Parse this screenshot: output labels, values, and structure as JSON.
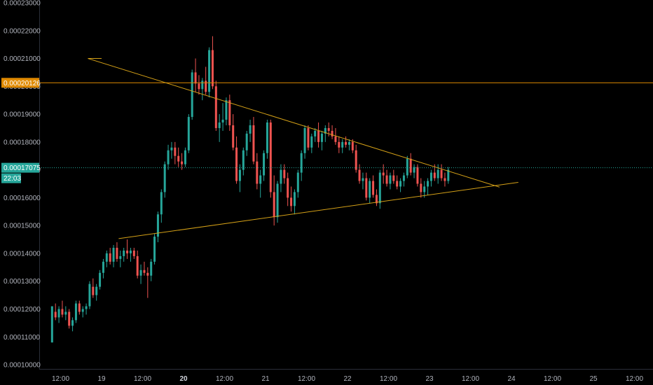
{
  "chart_data": {
    "type": "candlestick",
    "title": "",
    "xlabel": "",
    "ylabel": "",
    "ylim": [
      9.85e-05,
      0.000231
    ],
    "grid": false,
    "y_ticks": [
      "0.00010000",
      "0.00011000",
      "0.00012000",
      "0.00013000",
      "0.00014000",
      "0.00015000",
      "0.00016000",
      "0.00017000",
      "0.00018000",
      "0.00019000",
      "0.00020000",
      "0.00021000",
      "0.00022000",
      "0.00023000"
    ],
    "x_ticks": [
      {
        "label": "12:00",
        "bold": false
      },
      {
        "label": "19",
        "bold": false
      },
      {
        "label": "12:00",
        "bold": false
      },
      {
        "label": "20",
        "bold": true
      },
      {
        "label": "12:00",
        "bold": false
      },
      {
        "label": "21",
        "bold": false
      },
      {
        "label": "12:00",
        "bold": false
      },
      {
        "label": "22",
        "bold": false
      },
      {
        "label": "12:00",
        "bold": false
      },
      {
        "label": "23",
        "bold": false
      },
      {
        "label": "12:00",
        "bold": false
      },
      {
        "label": "24",
        "bold": false
      },
      {
        "label": "12:00",
        "bold": false
      },
      {
        "label": "25",
        "bold": false
      },
      {
        "label": "12:00",
        "bold": false
      }
    ],
    "time_axis_note": "x values are hours from 18 00:00; candles are 1h",
    "candles": [
      [
        0.000108,
        0.000121,
        0.000108,
        0.000121
      ],
      [
        0.000119,
        0.000122,
        0.000116,
        0.000117
      ],
      [
        0.000117,
        0.000121,
        0.000115,
        0.00012
      ],
      [
        0.00012,
        0.000123,
        0.000117,
        0.000118
      ],
      [
        0.000118,
        0.000121,
        0.000116,
        0.000119
      ],
      [
        0.000119,
        0.00012,
        0.000113,
        0.000114
      ],
      [
        0.000114,
        0.000117,
        0.000112,
        0.000116
      ],
      [
        0.000116,
        0.000123,
        0.000115,
        0.000122
      ],
      [
        0.000122,
        0.000123,
        0.000118,
        0.000119
      ],
      [
        0.000119,
        0.000121,
        0.000117,
        0.00012
      ],
      [
        0.00012,
        0.000122,
        0.000118,
        0.000121
      ],
      [
        0.000121,
        0.00013,
        0.00012,
        0.000129
      ],
      [
        0.000128,
        0.000131,
        0.000124,
        0.000125
      ],
      [
        0.000125,
        0.000129,
        0.000123,
        0.000128
      ],
      [
        0.000128,
        0.000134,
        0.000127,
        0.000133
      ],
      [
        0.000133,
        0.000138,
        0.000131,
        0.000137
      ],
      [
        0.000137,
        0.000141,
        0.000135,
        0.00014
      ],
      [
        0.00014,
        0.000142,
        0.000136,
        0.000137
      ],
      [
        0.000137,
        0.000143,
        0.000135,
        0.000142
      ],
      [
        0.000142,
        0.000144,
        0.000137,
        0.000138
      ],
      [
        0.000138,
        0.000141,
        0.000135,
        0.000139
      ],
      [
        0.000139,
        0.000142,
        0.000137,
        0.000141
      ],
      [
        0.000141,
        0.000145,
        0.000138,
        0.00014
      ],
      [
        0.00014,
        0.000142,
        0.000137,
        0.000141
      ],
      [
        0.000141,
        0.000142,
        0.000138,
        0.000139
      ],
      [
        0.000139,
        0.000141,
        0.000131,
        0.000132
      ],
      [
        0.000132,
        0.000136,
        0.000129,
        0.000134
      ],
      [
        0.000134,
        0.000137,
        0.000132,
        0.000133
      ],
      [
        0.000133,
        0.000135,
        0.000124,
        0.000132
      ],
      [
        0.000132,
        0.000138,
        0.00013,
        0.000137
      ],
      [
        0.000137,
        0.000147,
        0.000136,
        0.000146
      ],
      [
        0.000146,
        0.000155,
        0.000144,
        0.000154
      ],
      [
        0.000154,
        0.000163,
        0.000151,
        0.000162
      ],
      [
        0.000162,
        0.000173,
        0.00016,
        0.000172
      ],
      [
        0.000172,
        0.000179,
        0.00017,
        0.000177
      ],
      [
        0.000177,
        0.00018,
        0.000174,
        0.000178
      ],
      [
        0.000178,
        0.00018,
        0.000172,
        0.000175
      ],
      [
        0.000175,
        0.000178,
        0.000171,
        0.000173
      ],
      [
        0.000173,
        0.000176,
        0.00017,
        0.000172
      ],
      [
        0.000172,
        0.000178,
        0.000171,
        0.000177
      ],
      [
        0.000177,
        0.00019,
        0.000176,
        0.000189
      ],
      [
        0.000189,
        0.000206,
        0.000188,
        0.000205
      ],
      [
        0.000205,
        0.00021,
        0.000198,
        0.000201
      ],
      [
        0.000201,
        0.000204,
        0.000197,
        0.000199
      ],
      [
        0.000199,
        0.000203,
        0.000195,
        0.000202
      ],
      [
        0.000202,
        0.000207,
        0.000197,
        0.000198
      ],
      [
        0.000198,
        0.000214,
        0.000196,
        0.000213
      ],
      [
        0.000213,
        0.000218,
        0.000199,
        0.0002
      ],
      [
        0.0002,
        0.000202,
        0.000184,
        0.000185
      ],
      [
        0.000185,
        0.00019,
        0.00018,
        0.000187
      ],
      [
        0.000187,
        0.000194,
        0.000184,
        0.000188
      ],
      [
        0.000188,
        0.000196,
        0.000186,
        0.000195
      ],
      [
        0.000195,
        0.000197,
        0.000184,
        0.000186
      ],
      [
        0.000186,
        0.00019,
        0.000177,
        0.000178
      ],
      [
        0.000178,
        0.000182,
        0.000165,
        0.000166
      ],
      [
        0.000166,
        0.000172,
        0.000162,
        0.00017
      ],
      [
        0.00017,
        0.000178,
        0.000168,
        0.000177
      ],
      [
        0.000177,
        0.000184,
        0.000175,
        0.000183
      ],
      [
        0.000183,
        0.000188,
        0.00018,
        0.000186
      ],
      [
        0.000186,
        0.000189,
        0.000172,
        0.000173
      ],
      [
        0.000173,
        0.000176,
        0.000163,
        0.000165
      ],
      [
        0.000165,
        0.00017,
        0.00016,
        0.000168
      ],
      [
        0.000168,
        0.000177,
        0.000166,
        0.000176
      ],
      [
        0.000176,
        0.000188,
        0.000174,
        0.000187
      ],
      [
        0.000187,
        0.000188,
        0.00016,
        0.000162
      ],
      [
        0.000162,
        0.000168,
        0.00015,
        0.000153
      ],
      [
        0.000153,
        0.000166,
        0.000151,
        0.000165
      ],
      [
        0.000165,
        0.000172,
        0.000162,
        0.00017
      ],
      [
        0.00017,
        0.000172,
        0.000165,
        0.000167
      ],
      [
        0.000167,
        0.000169,
        0.000157,
        0.00016
      ],
      [
        0.00016,
        0.000164,
        0.000155,
        0.000157
      ],
      [
        0.000157,
        0.000163,
        0.000154,
        0.000162
      ],
      [
        0.000162,
        0.00017,
        0.00016,
        0.000169
      ],
      [
        0.000169,
        0.000177,
        0.000166,
        0.000176
      ],
      [
        0.000176,
        0.000186,
        0.000174,
        0.000185
      ],
      [
        0.000185,
        0.000186,
        0.000177,
        0.000178
      ],
      [
        0.000178,
        0.000183,
        0.000176,
        0.000182
      ],
      [
        0.000182,
        0.000185,
        0.00018,
        0.000184
      ],
      [
        0.000184,
        0.000187,
        0.000178,
        0.00018
      ],
      [
        0.00018,
        0.000184,
        0.000177,
        0.000183
      ],
      [
        0.000183,
        0.000186,
        0.00018,
        0.000185
      ],
      [
        0.000185,
        0.000187,
        0.000182,
        0.000184
      ],
      [
        0.000184,
        0.000186,
        0.000181,
        0.000182
      ],
      [
        0.000182,
        0.000185,
        0.000179,
        0.00018
      ],
      [
        0.00018,
        0.000182,
        0.000176,
        0.000178
      ],
      [
        0.000178,
        0.000181,
        0.000176,
        0.00018
      ],
      [
        0.00018,
        0.000182,
        0.000178,
        0.000179
      ],
      [
        0.000179,
        0.000181,
        0.000177,
        0.00018
      ],
      [
        0.00018,
        0.000181,
        0.000176,
        0.000177
      ],
      [
        0.000177,
        0.000179,
        0.000169,
        0.00017
      ],
      [
        0.00017,
        0.000172,
        0.000165,
        0.000166
      ],
      [
        0.000166,
        0.000169,
        0.000163,
        0.000167
      ],
      [
        0.000167,
        0.000169,
        0.000159,
        0.00016
      ],
      [
        0.00016,
        0.000167,
        0.000158,
        0.000166
      ],
      [
        0.000166,
        0.000168,
        0.00016,
        0.000161
      ],
      [
        0.000161,
        0.000163,
        0.000157,
        0.000158
      ],
      [
        0.000158,
        0.00017,
        0.000156,
        0.000169
      ],
      [
        0.000169,
        0.000172,
        0.000165,
        0.000168
      ],
      [
        0.000168,
        0.00017,
        0.000164,
        0.000165
      ],
      [
        0.000165,
        0.000169,
        0.000163,
        0.000168
      ],
      [
        0.000168,
        0.00017,
        0.000165,
        0.000166
      ],
      [
        0.000166,
        0.000168,
        0.000163,
        0.000164
      ],
      [
        0.000164,
        0.000167,
        0.000162,
        0.000166
      ],
      [
        0.000166,
        0.000169,
        0.000164,
        0.000168
      ],
      [
        0.000168,
        0.000175,
        0.000167,
        0.000174
      ],
      [
        0.000174,
        0.000176,
        0.000168,
        0.000169
      ],
      [
        0.000169,
        0.000172,
        0.000167,
        0.000171
      ],
      [
        0.000171,
        0.000172,
        0.000164,
        0.000165
      ],
      [
        0.000165,
        0.000167,
        0.00016,
        0.000162
      ],
      [
        0.000162,
        0.000166,
        0.00016,
        0.000164
      ],
      [
        0.000164,
        0.000167,
        0.000161,
        0.000166
      ],
      [
        0.000166,
        0.00017,
        0.000164,
        0.000169
      ],
      [
        0.000169,
        0.000172,
        0.000166,
        0.000167
      ],
      [
        0.000167,
        0.000172,
        0.000165,
        0.00017
      ],
      [
        0.00017,
        0.000172,
        0.000166,
        0.000167
      ],
      [
        0.000167,
        0.000169,
        0.000164,
        0.000166
      ],
      [
        0.000166,
        0.000171,
        0.000165,
        0.00017
      ]
    ],
    "candle_start_hour": 0,
    "lines": [
      {
        "name": "upper-trendline",
        "color": "#d4a017",
        "points": [
          [
            20,
            0.00021
          ],
          [
            140.5,
            0.0001638
          ]
        ]
      },
      {
        "name": "lower-trendline",
        "color": "#d4a017",
        "points": [
          [
            29,
            0.0001453
          ],
          [
            146,
            0.0001655
          ]
        ]
      },
      {
        "name": "upper-trendline-stub",
        "color": "#d4a017",
        "points": [
          [
            20,
            0.00021
          ],
          [
            24,
            0.00021
          ]
        ]
      }
    ],
    "horizontal_levels": [
      {
        "value": 0.00020126,
        "label": "0.00020126",
        "color": "#e08a00",
        "style": "solid"
      },
      {
        "value": 0.00017075,
        "label": "0.00017075",
        "color": "#26a69a",
        "style": "dotted"
      }
    ],
    "countdown_label": "22:03",
    "colors": {
      "up": "#26a69a",
      "down": "#ef5350",
      "background": "#000000",
      "axis_text": "#b2b5be"
    }
  }
}
